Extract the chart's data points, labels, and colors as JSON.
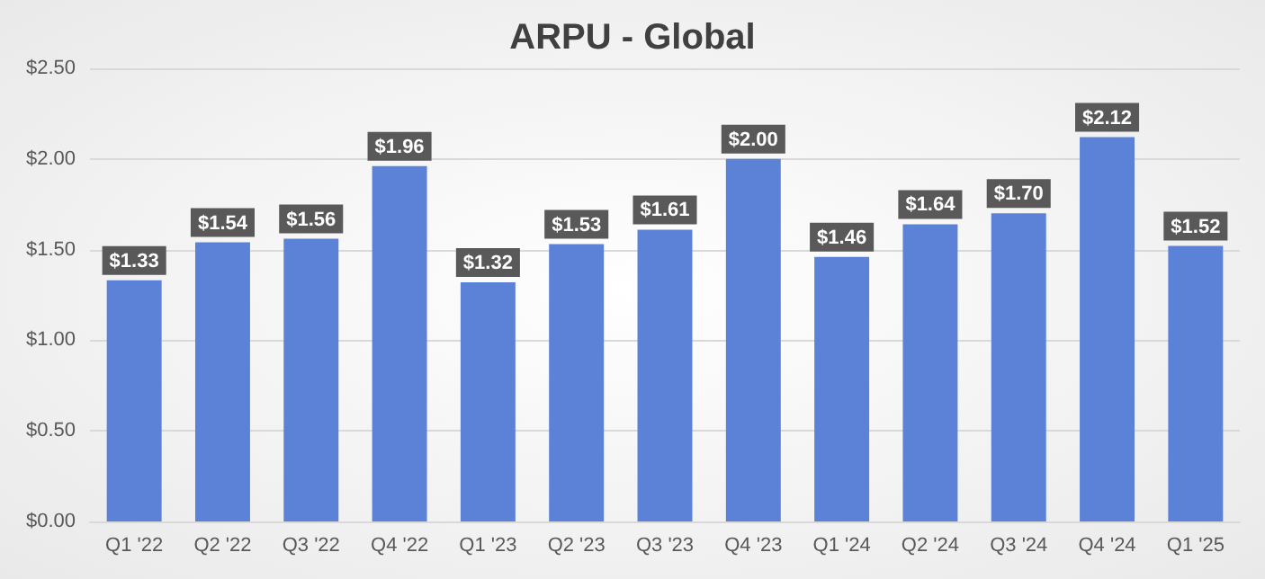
{
  "chart_data": {
    "type": "bar",
    "title": "ARPU - Global",
    "categories": [
      "Q1 '22",
      "Q2 '22",
      "Q3 '22",
      "Q4 '22",
      "Q1 '23",
      "Q2 '23",
      "Q3 '23",
      "Q4 '23",
      "Q1 '24",
      "Q2 '24",
      "Q3 '24",
      "Q4 '24",
      "Q1 '25"
    ],
    "values": [
      1.33,
      1.54,
      1.56,
      1.96,
      1.32,
      1.53,
      1.61,
      2.0,
      1.46,
      1.64,
      1.7,
      2.12,
      1.52
    ],
    "value_labels": [
      "$1.33",
      "$1.54",
      "$1.56",
      "$1.96",
      "$1.32",
      "$1.53",
      "$1.61",
      "$2.00",
      "$1.46",
      "$1.64",
      "$1.70",
      "$2.12",
      "$1.52"
    ],
    "color": "#5b82d6",
    "ylim": [
      0,
      2.5
    ],
    "yticks": [
      {
        "value": 0,
        "label": "$0.00"
      },
      {
        "value": 0.5,
        "label": "$0.50"
      },
      {
        "value": 1,
        "label": "$1.00"
      },
      {
        "value": 1.5,
        "label": "$1.50"
      },
      {
        "value": 2,
        "label": "$2.00"
      },
      {
        "value": 2.5,
        "label": "$2.50"
      }
    ],
    "grid": "y"
  }
}
